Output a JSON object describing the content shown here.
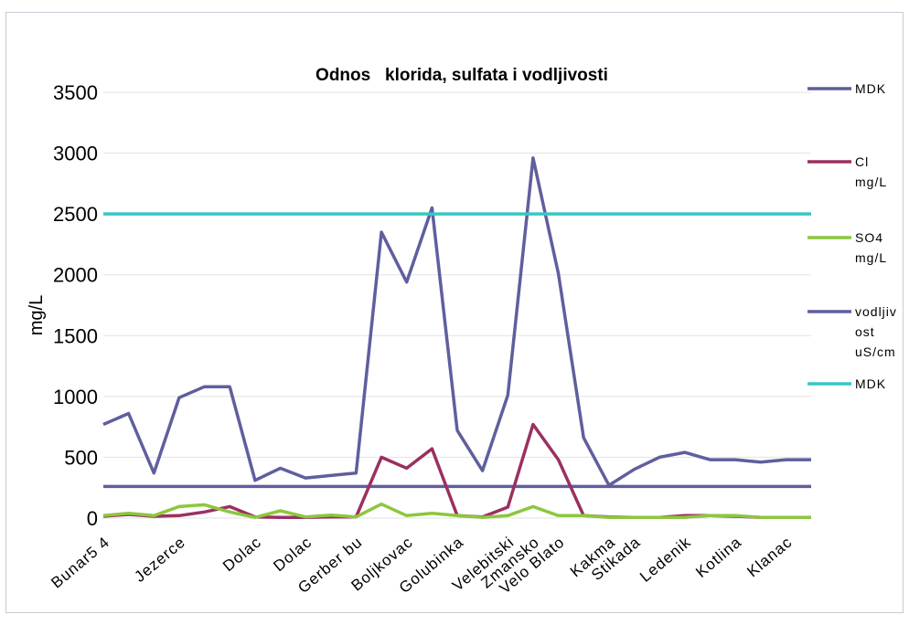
{
  "chart_data": {
    "type": "line",
    "title": "Odnos   klorida, sulfata i vodljivosti",
    "ylabel": "mg/L",
    "ylim": [
      0,
      3500
    ],
    "yticks": [
      0,
      500,
      1000,
      1500,
      2000,
      2500,
      3000,
      3500
    ],
    "grid": true,
    "legend_position": "right",
    "x_labels": [
      {
        "index": 0,
        "text": "Bunar5 4"
      },
      {
        "index": 3,
        "text": "Jezerce"
      },
      {
        "index": 6,
        "text": "Dolac"
      },
      {
        "index": 8,
        "text": "Dolac"
      },
      {
        "index": 10,
        "text": "Gerber bu"
      },
      {
        "index": 12,
        "text": "Boljkovac"
      },
      {
        "index": 14,
        "text": "Golubinka"
      },
      {
        "index": 16,
        "text": "Velebitski"
      },
      {
        "index": 17,
        "text": "Zmansko"
      },
      {
        "index": 18,
        "text": "Velo Blato"
      },
      {
        "index": 20,
        "text": "Kakma"
      },
      {
        "index": 21,
        "text": "Stikada"
      },
      {
        "index": 23,
        "text": "Ledenik"
      },
      {
        "index": 25,
        "text": "Kotlina"
      },
      {
        "index": 27,
        "text": "Klanac"
      }
    ],
    "x_count": 29,
    "series": [
      {
        "name": "MDK",
        "color": "#5f5f9e",
        "values": [
          260,
          260,
          260,
          260,
          260,
          260,
          260,
          260,
          260,
          260,
          260,
          260,
          260,
          260,
          260,
          260,
          260,
          260,
          260,
          260,
          260,
          260,
          260,
          260,
          260,
          260,
          260,
          260,
          260
        ]
      },
      {
        "name": "Cl mg/L",
        "color": "#9b3060",
        "values": [
          15,
          30,
          15,
          20,
          50,
          95,
          10,
          5,
          5,
          10,
          10,
          500,
          410,
          570,
          20,
          10,
          90,
          770,
          480,
          20,
          10,
          5,
          5,
          20,
          20,
          15,
          5,
          5,
          5
        ]
      },
      {
        "name": "SO4 mg/L",
        "color": "#8dc63f",
        "values": [
          20,
          40,
          20,
          95,
          110,
          50,
          5,
          60,
          10,
          25,
          10,
          115,
          20,
          40,
          20,
          5,
          20,
          95,
          20,
          20,
          5,
          5,
          5,
          5,
          20,
          20,
          5,
          5,
          5
        ]
      },
      {
        "name": "vodljivost uS/cm",
        "color": "#5f5f9e",
        "values": [
          770,
          860,
          370,
          990,
          1080,
          1080,
          310,
          410,
          330,
          350,
          370,
          2350,
          1940,
          2550,
          720,
          390,
          1010,
          2960,
          2010,
          660,
          270,
          400,
          500,
          540,
          480,
          480,
          460,
          480,
          480
        ]
      },
      {
        "name": "MDK",
        "color": "#35c7c8",
        "values": [
          2500,
          2500,
          2500,
          2500,
          2500,
          2500,
          2500,
          2500,
          2500,
          2500,
          2500,
          2500,
          2500,
          2500,
          2500,
          2500,
          2500,
          2500,
          2500,
          2500,
          2500,
          2500,
          2500,
          2500,
          2500,
          2500,
          2500,
          2500,
          2500
        ]
      }
    ],
    "legend": [
      {
        "lines": [
          "MDK"
        ],
        "color": "#5f5f9e"
      },
      {
        "lines": [
          "Cl",
          "mg/L"
        ],
        "color": "#9b3060"
      },
      {
        "lines": [
          "SO4",
          "mg/L"
        ],
        "color": "#8dc63f"
      },
      {
        "lines": [
          "vodljiv",
          "ost",
          "uS/cm"
        ],
        "color": "#5f5f9e"
      },
      {
        "lines": [
          "MDK"
        ],
        "color": "#35c7c8"
      }
    ]
  }
}
